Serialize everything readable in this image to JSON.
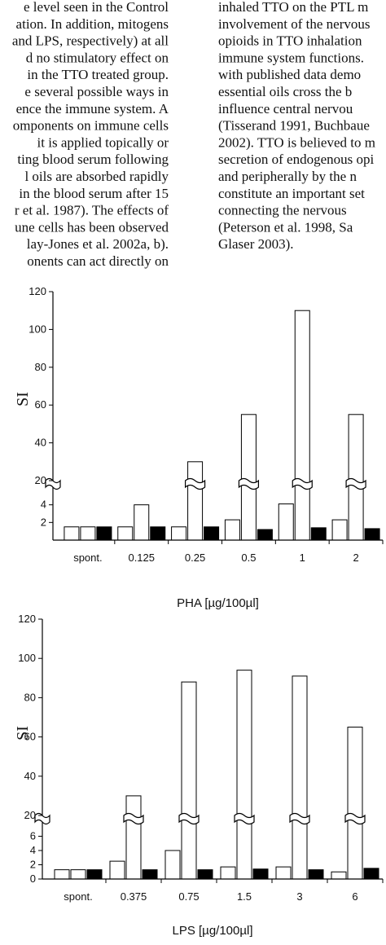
{
  "text": {
    "left_column": [
      "e level seen in the Control",
      "ation. In addition, mitogens",
      "and LPS, respectively) at all",
      "d no stimulatory effect on",
      "in the TTO treated group.",
      "e several possible ways in",
      "ence the immune system. A",
      "omponents on immune cells",
      "it is applied topically or",
      "ting blood serum following",
      "l oils are absorbed rapidly",
      "in the blood serum after 15",
      "r et al. 1987). The effects of",
      "une cells has been observed",
      "lay-Jones et al. 2002a, b).",
      "onents can act directly on"
    ],
    "right_column": [
      "inhaled TTO on the PTL m",
      "involvement of the nervous",
      "opioids in TTO inhalation",
      "immune system functions.",
      "with published data demo",
      "essential oils cross the b",
      "influence central nervou",
      "(Tisserand 1991, Buchbaue",
      "2002). TTO is believed to m",
      "secretion of endogenous opi",
      "and peripherally by the n",
      "constitute an important set",
      "connecting the nervous",
      "(Peterson et al. 1998, Sa",
      "Glaser 2003)."
    ]
  },
  "chart_data": [
    {
      "type": "bar",
      "y_label": "SI",
      "x_label": "PHA [µg/100µl]",
      "categories": [
        "spont.",
        "0.125",
        "0.25",
        "0.5",
        "1",
        "2"
      ],
      "series": [
        {
          "color": "#ffffff",
          "values": [
            1.5,
            1.5,
            1.5,
            2.3,
            4.1,
            2.3
          ]
        },
        {
          "color": "#ffffff",
          "values": [
            1.5,
            4,
            30,
            55,
            110,
            55
          ]
        },
        {
          "color": "#000000",
          "values": [
            1.5,
            1.5,
            1.5,
            1.2,
            1.4,
            1.3
          ]
        }
      ],
      "ylim": [
        0,
        120
      ],
      "ybreak": [
        6,
        20
      ],
      "yticks": [
        2,
        4,
        20,
        40,
        60,
        80,
        100,
        120
      ]
    },
    {
      "type": "bar",
      "y_label": "SI",
      "x_label": "LPS [µg/100µl]",
      "categories": [
        "spont.",
        "0.375",
        "0.75",
        "1.5",
        "3",
        "6"
      ],
      "series": [
        {
          "color": "#ffffff",
          "values": [
            1.3,
            2.5,
            4,
            1.7,
            1.7,
            1
          ]
        },
        {
          "color": "#ffffff",
          "values": [
            1.3,
            30,
            88,
            94,
            91,
            65
          ]
        },
        {
          "color": "#000000",
          "values": [
            1.3,
            1.3,
            1.3,
            1.4,
            1.3,
            1.5
          ]
        }
      ],
      "ylim": [
        0,
        120
      ],
      "ybreak": [
        8,
        20
      ],
      "yticks": [
        0,
        2,
        4,
        6,
        20,
        40,
        60,
        80,
        100,
        120
      ]
    }
  ]
}
